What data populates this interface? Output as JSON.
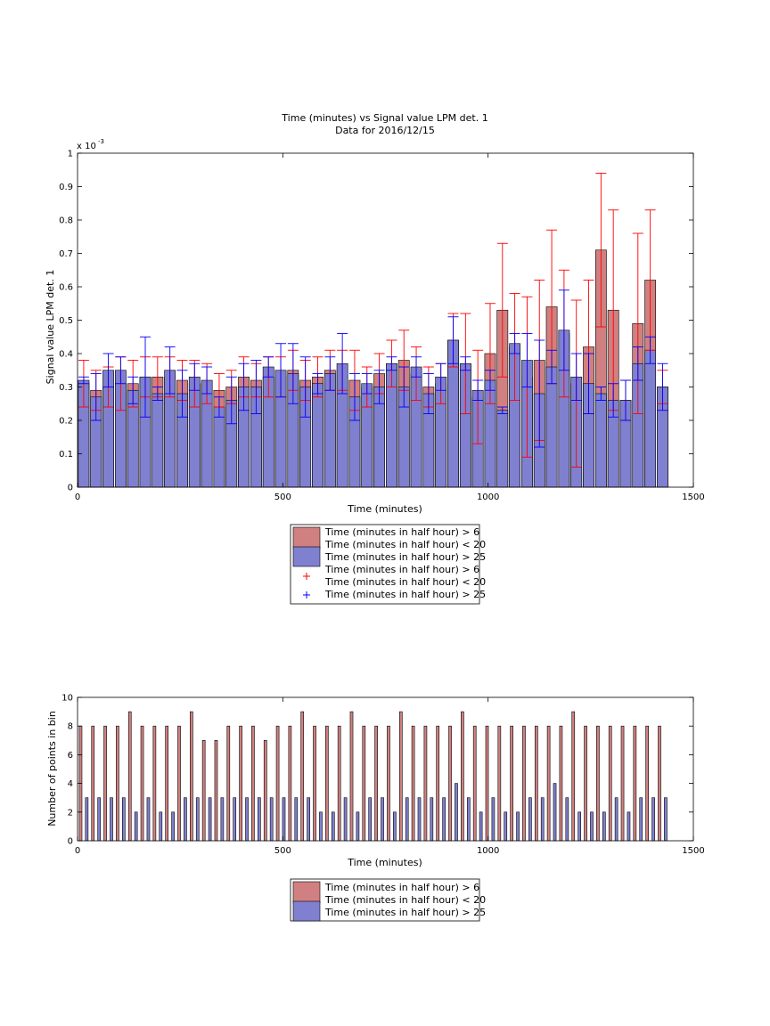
{
  "colors": {
    "red_bar": "#d08080",
    "blue_bar": "#8080d0",
    "red_err": "#ff0000",
    "blue_err": "#0000ff"
  },
  "legend": {
    "red_line1": "Time (minutes in half hour) > 6",
    "red_line2": "Time (minutes in half hour) < 20",
    "blue_line": "Time (minutes in half hour) > 25"
  },
  "chart_data": [
    {
      "type": "bar",
      "title": "Time (minutes) vs Signal value LPM det. 1",
      "subtitle": "Data for 2016/12/15",
      "xlabel": "Time (minutes)",
      "ylabel": "Signal value LPM det. 1",
      "xlim": [
        0,
        1500
      ],
      "ylim": [
        0,
        1
      ],
      "y_exponent_label": "x 10",
      "y_exponent": "-3",
      "xticks": [
        "0",
        "500",
        "1000",
        "1500"
      ],
      "yticks": [
        "0",
        "0.1",
        "0.2",
        "0.3",
        "0.4",
        "0.5",
        "0.6",
        "0.7",
        "0.8",
        "0.9",
        "1"
      ],
      "legend_position": "below",
      "x": [
        15,
        45,
        75,
        105,
        135,
        165,
        195,
        225,
        255,
        285,
        315,
        345,
        375,
        405,
        435,
        465,
        495,
        525,
        555,
        585,
        615,
        645,
        675,
        705,
        735,
        765,
        795,
        825,
        855,
        885,
        915,
        945,
        975,
        1005,
        1035,
        1065,
        1095,
        1125,
        1155,
        1185,
        1215,
        1245,
        1275,
        1305,
        1335,
        1365,
        1395,
        1425
      ],
      "series": [
        {
          "name": "Time (minutes in half hour) > 6 Time (minutes in half hour) < 20",
          "values": [
            0.31,
            0.29,
            0.3,
            0.31,
            0.31,
            0.33,
            0.33,
            0.33,
            0.32,
            0.31,
            0.31,
            0.29,
            0.3,
            0.33,
            0.32,
            0.33,
            0.33,
            0.35,
            0.32,
            0.33,
            0.35,
            0.35,
            0.32,
            0.3,
            0.34,
            0.37,
            0.38,
            0.34,
            0.3,
            0.31,
            0.44,
            0.37,
            0.27,
            0.4,
            0.53,
            0.42,
            0.33,
            0.38,
            0.54,
            0.46,
            0.31,
            0.42,
            0.71,
            0.53,
            0.26,
            0.49,
            0.62,
            0.3
          ],
          "errors": [
            0.07,
            0.06,
            0.06,
            0.08,
            0.07,
            0.06,
            0.06,
            0.06,
            0.06,
            0.07,
            0.06,
            0.05,
            0.05,
            0.06,
            0.05,
            0.06,
            0.06,
            0.06,
            0.06,
            0.06,
            0.06,
            0.06,
            0.09,
            0.06,
            0.06,
            0.07,
            0.09,
            0.08,
            0.06,
            0.06,
            0.08,
            0.15,
            0.14,
            0.15,
            0.2,
            0.16,
            0.24,
            0.24,
            0.23,
            0.19,
            0.25,
            0.2,
            0.23,
            0.3,
            0.06,
            0.27,
            0.21,
            0.05
          ]
        },
        {
          "name": "Time (minutes in half hour) > 25",
          "values": [
            0.32,
            0.27,
            0.35,
            0.35,
            0.29,
            0.33,
            0.28,
            0.35,
            0.28,
            0.33,
            0.32,
            0.24,
            0.26,
            0.3,
            0.3,
            0.36,
            0.35,
            0.34,
            0.3,
            0.31,
            0.34,
            0.37,
            0.27,
            0.31,
            0.3,
            0.37,
            0.3,
            0.36,
            0.28,
            0.33,
            0.44,
            0.37,
            0.29,
            0.32,
            0.23,
            0.43,
            0.38,
            0.28,
            0.36,
            0.47,
            0.33,
            0.31,
            0.28,
            0.26,
            0.26,
            0.37,
            0.41,
            0.3
          ],
          "errors": [
            0.01,
            0.07,
            0.05,
            0.04,
            0.04,
            0.12,
            0.02,
            0.07,
            0.07,
            0.04,
            0.04,
            0.03,
            0.07,
            0.07,
            0.08,
            0.03,
            0.08,
            0.09,
            0.09,
            0.03,
            0.05,
            0.09,
            0.07,
            0.03,
            0.05,
            0.02,
            0.06,
            0.03,
            0.06,
            0.04,
            0.07,
            0.02,
            0.03,
            0.03,
            0.01,
            0.03,
            0.08,
            0.16,
            0.05,
            0.12,
            0.07,
            0.09,
            0.02,
            0.05,
            0.06,
            0.05,
            0.04,
            0.07
          ]
        }
      ]
    },
    {
      "type": "bar",
      "xlabel": "Time (minutes)",
      "ylabel": "Number of points in bin",
      "xlim": [
        0,
        1500
      ],
      "ylim": [
        0,
        10
      ],
      "xticks": [
        "0",
        "500",
        "1000",
        "1500"
      ],
      "yticks": [
        "0",
        "2",
        "4",
        "6",
        "8",
        "10"
      ],
      "legend_position": "below",
      "x": [
        15,
        45,
        75,
        105,
        135,
        165,
        195,
        225,
        255,
        285,
        315,
        345,
        375,
        405,
        435,
        465,
        495,
        525,
        555,
        585,
        615,
        645,
        675,
        705,
        735,
        765,
        795,
        825,
        855,
        885,
        915,
        945,
        975,
        1005,
        1035,
        1065,
        1095,
        1125,
        1155,
        1185,
        1215,
        1245,
        1275,
        1305,
        1335,
        1365,
        1395,
        1425
      ],
      "series": [
        {
          "name": "Time (minutes in half hour) > 6 Time (minutes in half hour) < 20",
          "values": [
            8,
            8,
            8,
            8,
            9,
            8,
            8,
            8,
            8,
            9,
            7,
            7,
            8,
            8,
            8,
            7,
            8,
            8,
            9,
            8,
            8,
            8,
            9,
            8,
            8,
            8,
            9,
            8,
            8,
            8,
            8,
            9,
            8,
            8,
            8,
            8,
            8,
            8,
            8,
            8,
            9,
            8,
            8,
            8,
            8,
            8,
            8,
            8
          ]
        },
        {
          "name": "Time (minutes in half hour) > 25",
          "values": [
            3,
            3,
            3,
            3,
            2,
            3,
            2,
            2,
            3,
            3,
            3,
            3,
            3,
            3,
            3,
            3,
            3,
            3,
            3,
            2,
            2,
            3,
            2,
            3,
            3,
            2,
            3,
            3,
            3,
            3,
            4,
            3,
            2,
            3,
            2,
            2,
            3,
            3,
            4,
            3,
            2,
            2,
            2,
            3,
            2,
            3,
            3,
            3
          ]
        }
      ]
    }
  ]
}
